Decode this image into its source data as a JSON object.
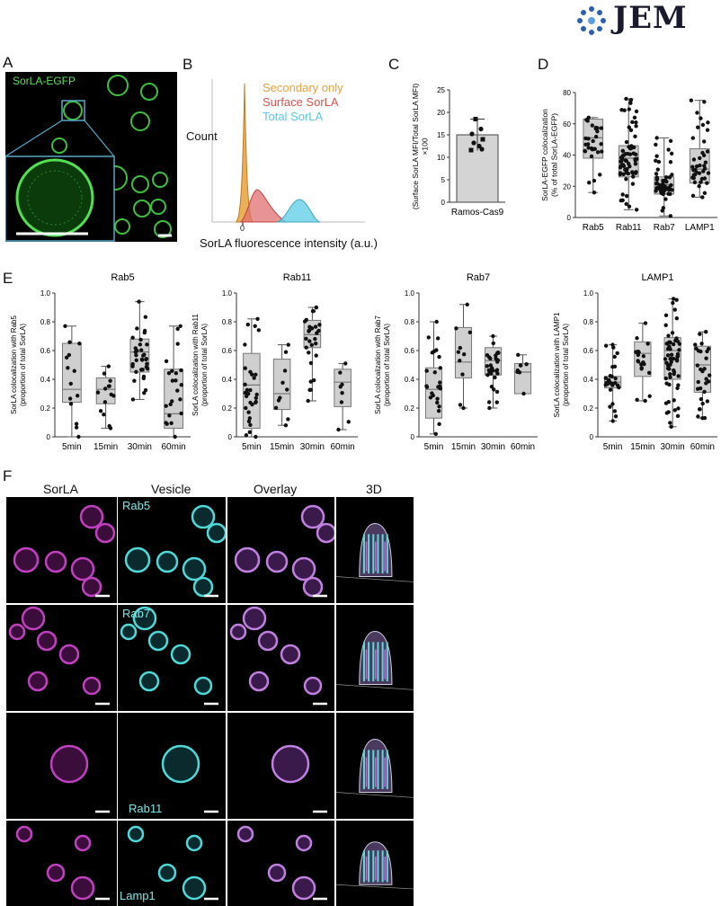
{
  "journal": {
    "name": "JEM"
  },
  "panels": {
    "A": {
      "letter": "A",
      "label": "SorLA-EGFP"
    },
    "B": {
      "letter": "B",
      "ylabel": "Count",
      "xlabel": "SorLA fluorescence intensity (a.u.)",
      "tick": "0",
      "legend": [
        {
          "name": "Secondary only",
          "color": "#e8a23a"
        },
        {
          "name": "Surface SorLA",
          "color": "#d9534f"
        },
        {
          "name": "Total SorLA",
          "color": "#5bc8e0"
        }
      ]
    },
    "C": {
      "letter": "C"
    },
    "D": {
      "letter": "D"
    },
    "E": {
      "letter": "E"
    },
    "F": {
      "letter": "F",
      "columns": [
        "SorLA",
        "Vesicle",
        "Overlay",
        "3D"
      ],
      "rows": [
        "Rab5",
        "Rab7",
        "Rab11",
        "Lamp1"
      ]
    }
  },
  "chart_data": [
    {
      "panel": "C",
      "type": "bar",
      "categories": [
        "Ramos-Cas9"
      ],
      "values": [
        15
      ],
      "error": [
        3.5
      ],
      "points": [
        18.5,
        16.3,
        15.2,
        14.0,
        13.2,
        12.5,
        11.6,
        11.8
      ],
      "ylabel": "(Surface SorLA MFI/Total SorLA MFI)\n×100",
      "ylim": [
        0,
        25
      ],
      "yticks": [
        0,
        5,
        10,
        15,
        20,
        25
      ]
    },
    {
      "panel": "D",
      "type": "box",
      "categories": [
        "Rab5",
        "Rab11",
        "Rab7",
        "LAMP1"
      ],
      "ylabel": "SorLA-EGFP colocalization\n(% of total SorLA-EGFP)",
      "ylim": [
        0,
        80
      ],
      "yticks": [
        0,
        20,
        40,
        60,
        80
      ],
      "boxes": [
        {
          "min": 16,
          "q1": 38,
          "median": 51,
          "q3": 63,
          "max": 64
        },
        {
          "min": 5,
          "q1": 26,
          "median": 38,
          "q3": 46,
          "max": 76
        },
        {
          "min": 1,
          "q1": 15,
          "median": 21,
          "q3": 26,
          "max": 51
        },
        {
          "min": 13,
          "q1": 22,
          "median": 31,
          "q3": 44,
          "max": 75
        }
      ]
    },
    {
      "panel": "E-Rab5",
      "type": "box",
      "title": "Rab5",
      "categories": [
        "5min",
        "15min",
        "30min",
        "60min"
      ],
      "ylabel": "SorLA colocalization with Rab5\n(proportion of total SorLA)",
      "ylim": [
        0,
        1.0
      ],
      "yticks": [
        "0",
        "0.2",
        "0.4",
        "0.6",
        "0.8",
        "1.0"
      ],
      "boxes": [
        {
          "min": 0.0,
          "q1": 0.24,
          "median": 0.33,
          "q3": 0.65,
          "max": 0.77
        },
        {
          "min": 0.06,
          "q1": 0.23,
          "median": 0.33,
          "q3": 0.41,
          "max": 0.49
        },
        {
          "min": 0.26,
          "q1": 0.45,
          "median": 0.59,
          "q3": 0.68,
          "max": 0.94
        },
        {
          "min": 0.0,
          "q1": 0.06,
          "median": 0.16,
          "q3": 0.47,
          "max": 0.77
        }
      ]
    },
    {
      "panel": "E-Rab11",
      "type": "box",
      "title": "Rab11",
      "categories": [
        "5min",
        "15min",
        "30min",
        "60min"
      ],
      "ylabel": "SorLA colocalization with Rab11\n(proportion of total SorLA)",
      "ylim": [
        0,
        1.0
      ],
      "yticks": [
        "0",
        "0.2",
        "0.4",
        "0.6",
        "0.8",
        "1.0"
      ],
      "boxes": [
        {
          "min": 0.0,
          "q1": 0.06,
          "median": 0.36,
          "q3": 0.58,
          "max": 0.82
        },
        {
          "min": 0.08,
          "q1": 0.19,
          "median": 0.3,
          "q3": 0.54,
          "max": 0.64
        },
        {
          "min": 0.25,
          "q1": 0.62,
          "median": 0.71,
          "q3": 0.81,
          "max": 0.9
        },
        {
          "min": 0.05,
          "q1": 0.21,
          "median": 0.38,
          "q3": 0.47,
          "max": 0.51
        }
      ]
    },
    {
      "panel": "E-Rab7",
      "type": "box",
      "title": "Rab7",
      "categories": [
        "5min",
        "15min",
        "30min",
        "60min"
      ],
      "ylabel": "SorLA colocalization with Rab7\n(proportion of total SorLA)",
      "ylim": [
        0,
        1.0
      ],
      "yticks": [
        "0",
        "0.2",
        "0.4",
        "0.6",
        "0.8",
        "1.0"
      ],
      "boxes": [
        {
          "min": 0.02,
          "q1": 0.13,
          "median": 0.33,
          "q3": 0.48,
          "max": 0.8
        },
        {
          "min": 0.2,
          "q1": 0.41,
          "median": 0.52,
          "q3": 0.76,
          "max": 0.92
        },
        {
          "min": 0.2,
          "q1": 0.43,
          "median": 0.53,
          "q3": 0.62,
          "max": 0.7
        },
        {
          "min": 0.3,
          "q1": 0.3,
          "median": 0.45,
          "q3": 0.51,
          "max": 0.57
        }
      ]
    },
    {
      "panel": "E-LAMP1",
      "type": "box",
      "title": "LAMP1",
      "categories": [
        "5min",
        "15min",
        "30min",
        "60min"
      ],
      "ylabel": "SorLA colocalization with LAMP1\n(proportion of total SorLA)",
      "ylim": [
        0,
        1.0
      ],
      "yticks": [
        "0",
        "0.2",
        "0.4",
        "0.6",
        "0.8",
        "1.0"
      ],
      "boxes": [
        {
          "min": 0.11,
          "q1": 0.34,
          "median": 0.38,
          "q3": 0.42,
          "max": 0.64
        },
        {
          "min": 0.25,
          "q1": 0.42,
          "median": 0.58,
          "q3": 0.66,
          "max": 0.79
        },
        {
          "min": 0.07,
          "q1": 0.4,
          "median": 0.6,
          "q3": 0.69,
          "max": 0.96
        },
        {
          "min": 0.13,
          "q1": 0.31,
          "median": 0.5,
          "q3": 0.63,
          "max": 0.73
        }
      ]
    }
  ]
}
